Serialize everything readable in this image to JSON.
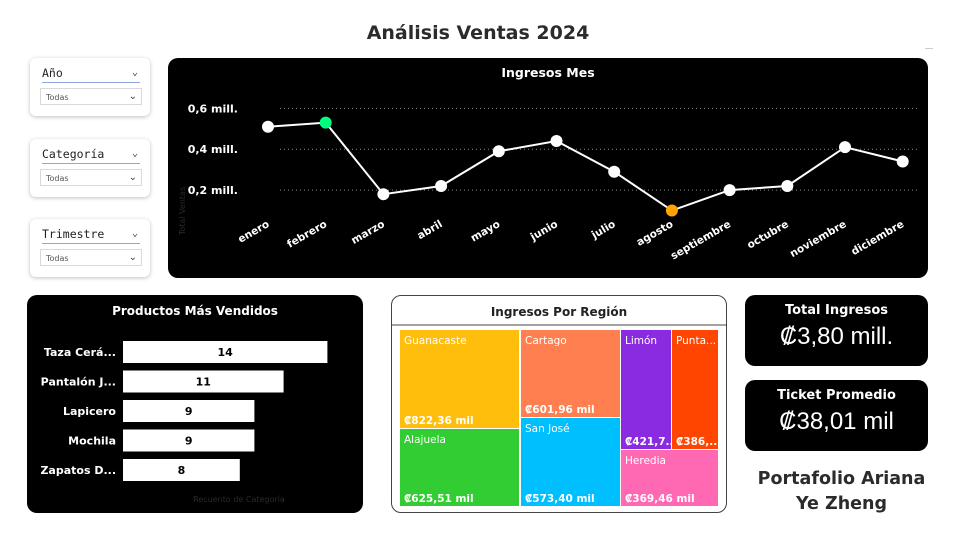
{
  "report_title": "Análisis Ventas 2024",
  "slicers": [
    {
      "label": "Año",
      "value": "Todas"
    },
    {
      "label": "Categoría",
      "value": "Todas"
    },
    {
      "label": "Trimestre",
      "value": "Todas"
    }
  ],
  "icons": {
    "dropdown": "chevron-down-icon"
  },
  "line_chart": {
    "title": "Ingresos Mes",
    "ylabel": "Total Ventas",
    "y_ticks": [
      "0,2 mill.",
      "0,4 mill.",
      "0,6 mill."
    ],
    "months": [
      "enero",
      "febrero",
      "marzo",
      "abril",
      "mayo",
      "junio",
      "julio",
      "agosto",
      "septiembre",
      "octubre",
      "noviembre",
      "diciembre"
    ]
  },
  "bar_chart": {
    "title": "Productos Más Vendidos",
    "xlabel": "Recuento de Categoría",
    "labels": [
      "Taza Cerá...",
      "Pantalón J...",
      "Lapicero",
      "Mochila",
      "Zapatos D..."
    ],
    "value_labels": [
      "14",
      "11",
      "9",
      "9",
      "8"
    ]
  },
  "treemap": {
    "title": "Ingresos Por Región",
    "regions": [
      {
        "name": "Guanacaste",
        "label": "₡822,36 mil",
        "color": "#FFBE0B"
      },
      {
        "name": "Cartago",
        "label": "₡601,96 mil",
        "color": "#FF7F50"
      },
      {
        "name": "Limón",
        "label": "₡421,7...",
        "color": "#8A2BE2"
      },
      {
        "name": "Punta...",
        "label": "₡386,...",
        "color": "#FF4500"
      },
      {
        "name": "Alajuela",
        "label": "₡625,51 mil",
        "color": "#32CD32"
      },
      {
        "name": "San José",
        "label": "₡573,40 mil",
        "color": "#00BFFF"
      },
      {
        "name": "Heredia",
        "label": "₡369,46 mil",
        "color": "#FF69B4"
      }
    ]
  },
  "kpis": {
    "total_title": "Total Ingresos",
    "total_value": "₡3,80 mill.",
    "ticket_title": "Ticket Promedio",
    "ticket_value": "₡38,01 mil"
  },
  "footer": {
    "line1": "Portafolio Ariana",
    "line2": "Ye Zheng"
  },
  "colors": {
    "background": "#ffffff",
    "card": "#000000",
    "highlight_max": "#00FF7F",
    "highlight_min": "#FFA500"
  },
  "chart_data": [
    {
      "type": "line",
      "title": "Ingresos Mes",
      "ylabel": "Total Ventas",
      "x": [
        "enero",
        "febrero",
        "marzo",
        "abril",
        "mayo",
        "junio",
        "julio",
        "agosto",
        "septiembre",
        "octubre",
        "noviembre",
        "diciembre"
      ],
      "series": [
        {
          "values": [
            0.51,
            0.53,
            0.18,
            0.22,
            0.39,
            0.44,
            0.29,
            0.1,
            0.2,
            0.22,
            0.41,
            0.34
          ]
        }
      ],
      "yunit": "mill.",
      "ylim": [
        0.0,
        0.67
      ],
      "grid": true
    },
    {
      "type": "bar",
      "orientation": "horizontal",
      "title": "Productos Más Vendidos",
      "categories": [
        "Taza Cerá...",
        "Pantalón J...",
        "Lapicero",
        "Mochila",
        "Zapatos D..."
      ],
      "values": [
        14,
        11,
        9,
        9,
        8
      ],
      "xlabel": "Recuento de Categoría",
      "xlim": [
        0,
        15
      ]
    },
    {
      "type": "treemap",
      "title": "Ingresos Por Región",
      "categories": [
        "Guanacaste",
        "Alajuela",
        "Cartago",
        "San José",
        "Limón",
        "Heredia",
        "Punta..."
      ],
      "values": [
        822.36,
        625.51,
        601.96,
        573.4,
        421.7,
        369.46,
        386.0
      ],
      "unit": "mil ₡"
    }
  ]
}
